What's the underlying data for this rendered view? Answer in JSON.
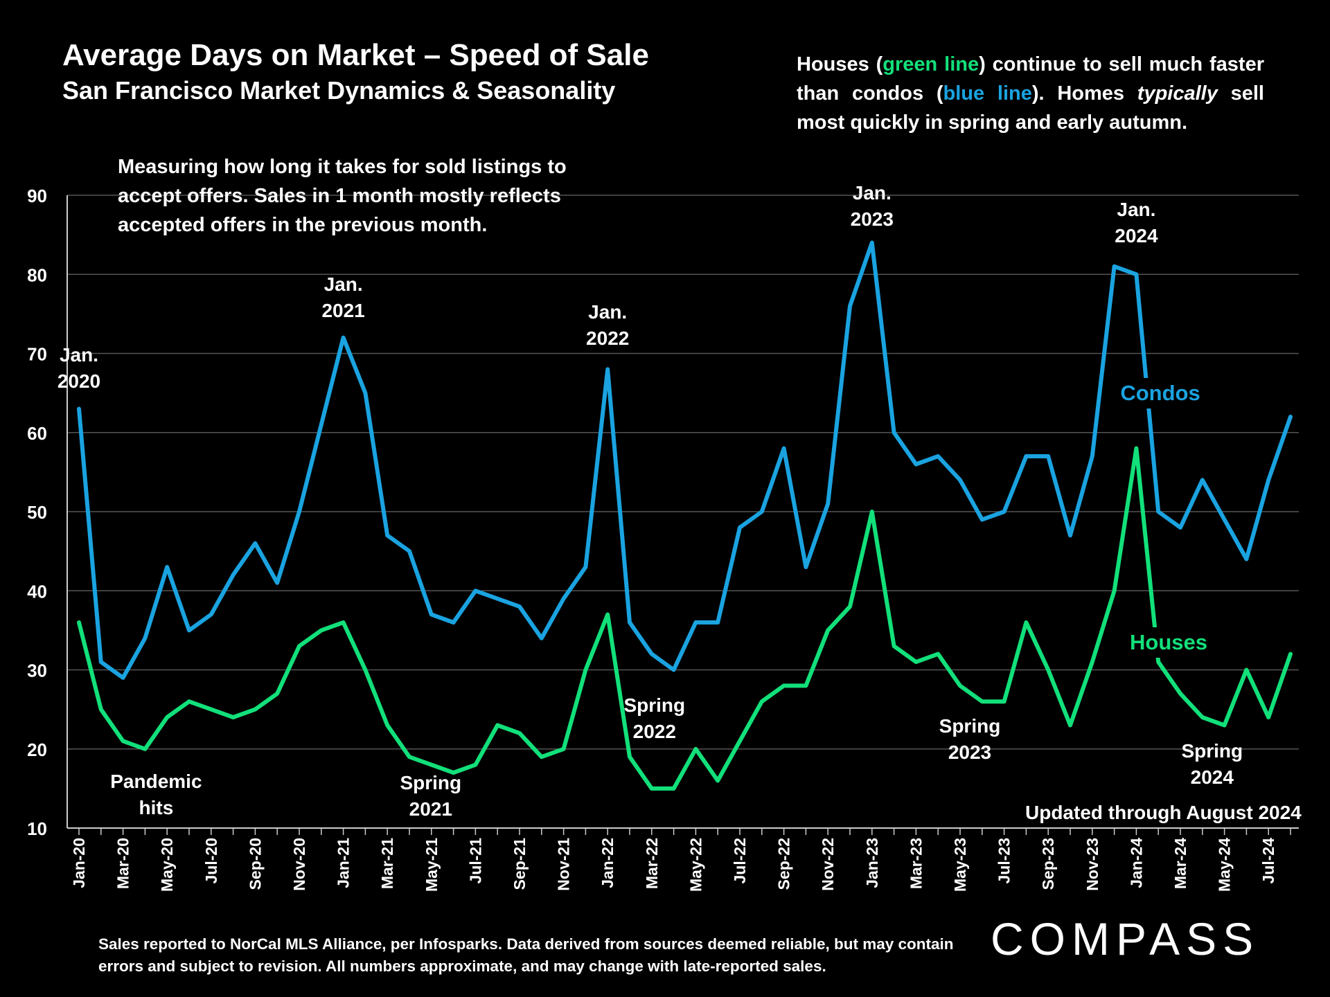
{
  "header": {
    "title": "Average Days on Market – Speed of Sale",
    "subtitle": "San Francisco Market Dynamics & Seasonality"
  },
  "note": {
    "prefix": "Houses (",
    "green_text": "green line",
    "mid": ") continue to sell much faster than condos (",
    "blue_text": "blue line",
    "after_blue": "). Homes ",
    "italic_word": "typically",
    "suffix": " sell most quickly in spring and early autumn."
  },
  "measure_note": "Measuring how long it takes for sold listings to accept offers. Sales in 1 month mostly reflects accepted offers in the previous month.",
  "updated_note": "Updated through August 2024",
  "footnote": "Sales reported to NorCal MLS Alliance, per Infosparks. Data derived from sources deemed reliable, but may contain errors and subject to revision. All numbers approximate, and may change with late-reported sales.",
  "logo": "COMPASS",
  "colors": {
    "background": "#000000",
    "condos": "#1AA3E0",
    "houses": "#12E07A",
    "grid": "#555555",
    "text": "#FFFFFF"
  },
  "chart_data": {
    "type": "line",
    "title": "Average Days on Market – Speed of Sale",
    "subtitle": "San Francisco Market Dynamics & Seasonality",
    "ylim": [
      10,
      90
    ],
    "yticks": [
      10,
      20,
      30,
      40,
      50,
      60,
      70,
      80,
      90
    ],
    "grid": true,
    "x": [
      "Jan-20",
      "Feb-20",
      "Mar-20",
      "Apr-20",
      "May-20",
      "Jun-20",
      "Jul-20",
      "Aug-20",
      "Sep-20",
      "Oct-20",
      "Nov-20",
      "Dec-20",
      "Jan-21",
      "Feb-21",
      "Mar-21",
      "Apr-21",
      "May-21",
      "Jun-21",
      "Jul-21",
      "Aug-21",
      "Sep-21",
      "Oct-21",
      "Nov-21",
      "Dec-21",
      "Jan-22",
      "Feb-22",
      "Mar-22",
      "Apr-22",
      "May-22",
      "Jun-22",
      "Jul-22",
      "Aug-22",
      "Sep-22",
      "Oct-22",
      "Nov-22",
      "Dec-22",
      "Jan-23",
      "Feb-23",
      "Mar-23",
      "Apr-23",
      "May-23",
      "Jun-23",
      "Jul-23",
      "Aug-23",
      "Sep-23",
      "Oct-23",
      "Nov-23",
      "Dec-23",
      "Jan-24",
      "Feb-24",
      "Mar-24",
      "Apr-24",
      "May-24",
      "Jun-24",
      "Jul-24",
      "Aug-24"
    ],
    "xtick_labels": [
      "Jan-20",
      "Mar-20",
      "May-20",
      "Jul-20",
      "Sep-20",
      "Nov-20",
      "Jan-21",
      "Mar-21",
      "May-21",
      "Jul-21",
      "Sep-21",
      "Nov-21",
      "Jan-22",
      "Mar-22",
      "May-22",
      "Jul-22",
      "Sep-22",
      "Nov-22",
      "Jan-23",
      "Mar-23",
      "May-23",
      "Jul-23",
      "Sep-23",
      "Nov-23",
      "Jan-24",
      "Mar-24",
      "May-24",
      "Jul-24"
    ],
    "series": [
      {
        "name": "Condos",
        "color": "#1AA3E0",
        "values": [
          63,
          31,
          29,
          34,
          43,
          35,
          37,
          42,
          46,
          41,
          50,
          61,
          72,
          65,
          47,
          45,
          37,
          36,
          40,
          39,
          38,
          34,
          39,
          43,
          68,
          36,
          32,
          30,
          36,
          36,
          48,
          50,
          58,
          43,
          51,
          76,
          84,
          60,
          56,
          57,
          54,
          49,
          50,
          57,
          57,
          47,
          57,
          81,
          80,
          50,
          48,
          54,
          49,
          44,
          54,
          62
        ]
      },
      {
        "name": "Houses",
        "color": "#12E07A",
        "values": [
          36,
          25,
          21,
          20,
          24,
          26,
          25,
          24,
          25,
          27,
          33,
          35,
          36,
          30,
          23,
          19,
          18,
          17,
          18,
          23,
          22,
          19,
          20,
          30,
          37,
          19,
          15,
          15,
          20,
          16,
          21,
          26,
          28,
          28,
          35,
          38,
          50,
          33,
          31,
          32,
          28,
          26,
          26,
          36,
          30,
          23,
          31,
          40,
          58,
          31,
          27,
          24,
          23,
          30,
          24,
          32
        ]
      }
    ],
    "annotations": [
      {
        "lines": [
          "Jan.",
          "2020"
        ],
        "x": "Jan-20"
      },
      {
        "lines": [
          "Jan.",
          "2021"
        ],
        "x": "Jan-21"
      },
      {
        "lines": [
          "Jan.",
          "2022"
        ],
        "x": "Jan-22"
      },
      {
        "lines": [
          "Jan.",
          "2023"
        ],
        "x": "Jan-23"
      },
      {
        "lines": [
          "Jan.",
          "2024"
        ],
        "x": "Jan-24"
      },
      {
        "lines": [
          "Pandemic",
          "hits"
        ],
        "x": "Apr-20"
      },
      {
        "lines": [
          "Spring",
          "2021"
        ],
        "x": "May-21"
      },
      {
        "lines": [
          "Spring",
          "2022"
        ],
        "x": "Mar-22"
      },
      {
        "lines": [
          "Spring",
          "2023"
        ],
        "x": "May-23"
      },
      {
        "lines": [
          "Spring",
          "2024"
        ],
        "x": "Apr-24"
      }
    ]
  }
}
